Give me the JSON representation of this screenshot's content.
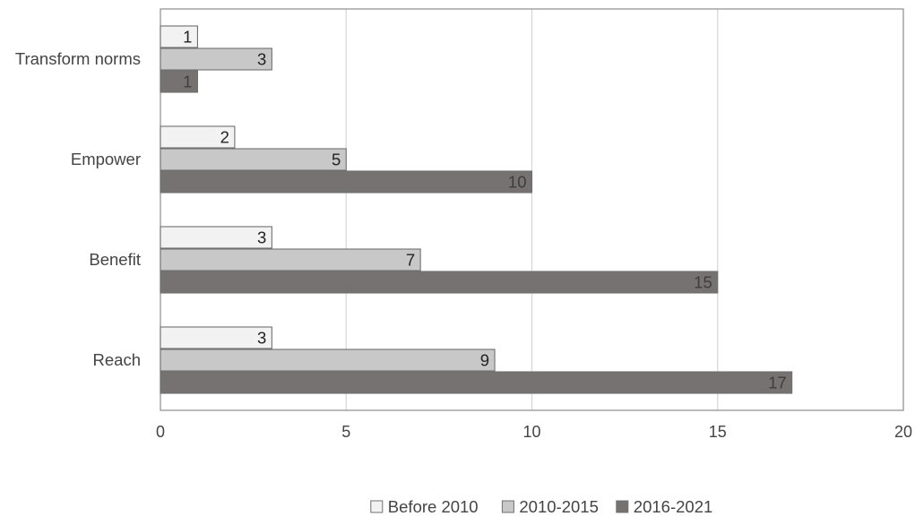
{
  "chart_data": {
    "type": "bar",
    "orientation": "horizontal",
    "title": "",
    "xlabel": "",
    "ylabel": "",
    "categories": [
      "Transform norms",
      "Empower",
      "Benefit",
      "Reach"
    ],
    "series": [
      {
        "name": "Before 2010",
        "values": [
          1,
          2,
          3,
          3
        ],
        "color": "#f2f2f2",
        "label_color": "#222222"
      },
      {
        "name": "2010-2015",
        "values": [
          3,
          5,
          7,
          9
        ],
        "color": "#c8c8c8",
        "label_color": "#222222"
      },
      {
        "name": "2016-2021",
        "values": [
          1,
          10,
          15,
          17
        ],
        "color": "#777272",
        "label_color": "#3d3d3d"
      }
    ],
    "xlim": [
      0,
      20
    ],
    "xticks": [
      "0",
      "5",
      "10",
      "15",
      "20"
    ],
    "grid": "vertical",
    "legend": "bottom",
    "data_labels": true
  }
}
